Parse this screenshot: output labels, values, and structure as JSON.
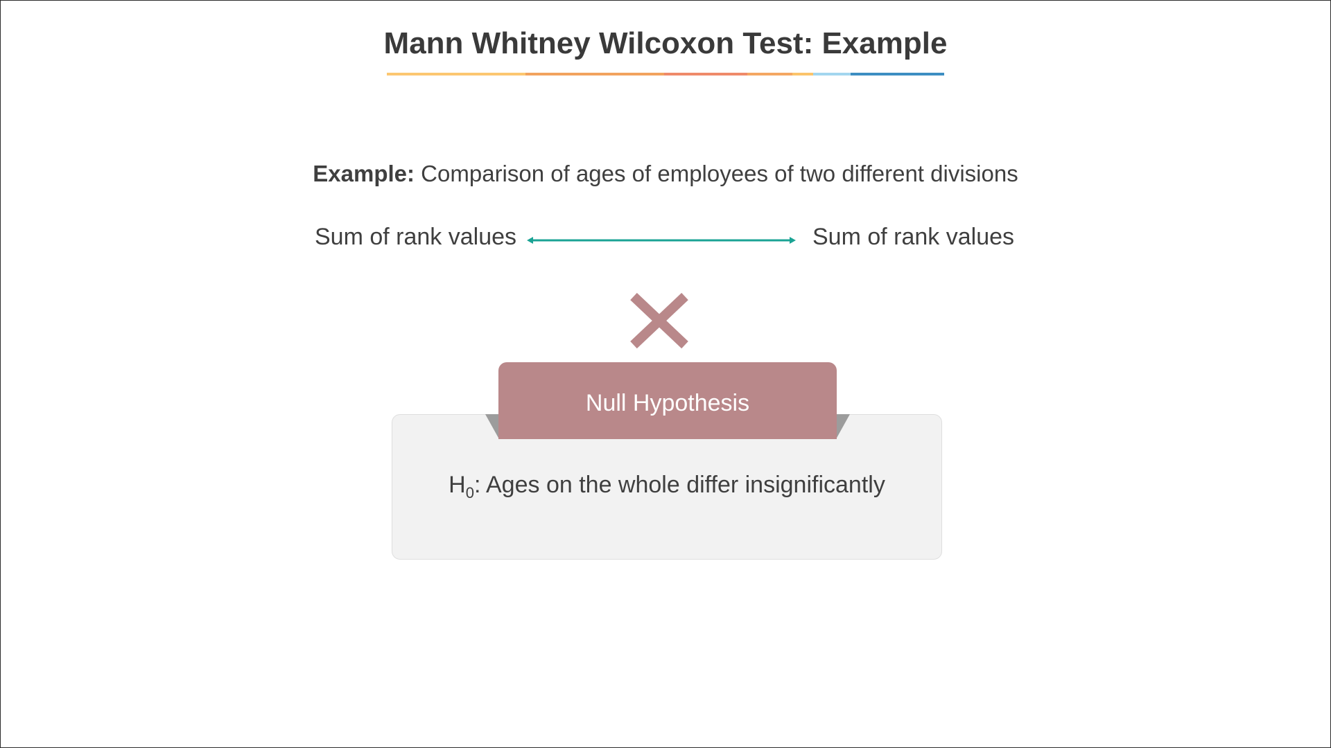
{
  "slide": {
    "title": "Mann Whitney Wilcoxon Test: Example",
    "title_underline_colors": [
      "#fcc771",
      "#f2a35e",
      "#ef8a6a",
      "#f4a763",
      "#fbc46b",
      "#a3d6ef",
      "#3d8ec2"
    ],
    "example": {
      "label": "Example:",
      "text": " Comparison of ages of employees of two different divisions"
    },
    "comparison": {
      "left_label": "Sum of rank values",
      "right_label": "Sum of rank values",
      "arrow_color": "#1aa394",
      "cross_icon": "x-mark",
      "cross_color": "#b9888a"
    },
    "hypothesis_box": {
      "tab_label": "Null Hypothesis",
      "symbol": "H",
      "subscript": "0",
      "statement": ": Ages on the whole differ insignificantly",
      "tab_color": "#b9888a",
      "panel_color": "#f2f2f2"
    }
  }
}
